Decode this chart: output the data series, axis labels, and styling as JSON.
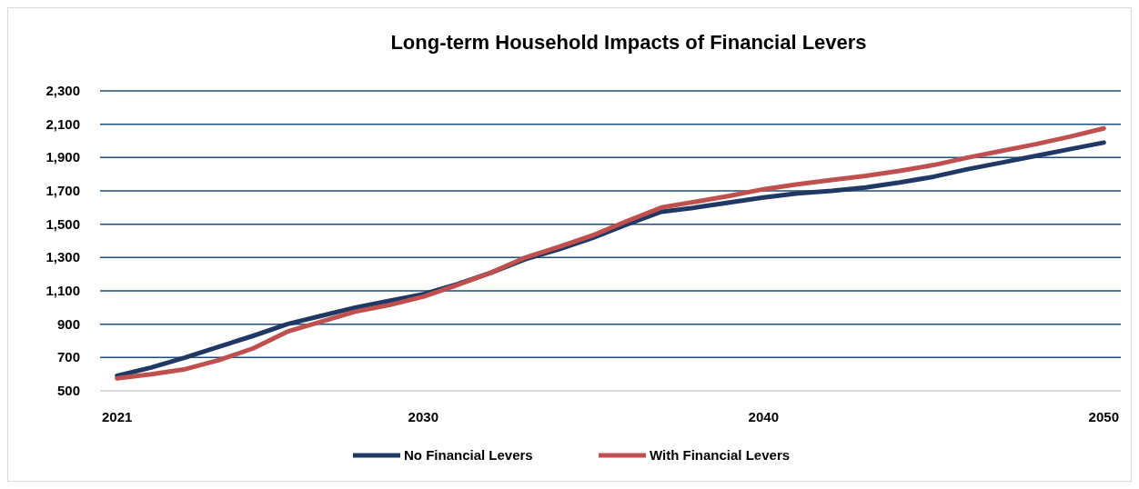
{
  "chart_data": {
    "type": "line",
    "title": "Long-term Household Impacts of Financial Levers",
    "x": [
      2021,
      2022,
      2023,
      2024,
      2025,
      2026,
      2027,
      2028,
      2029,
      2030,
      2031,
      2032,
      2033,
      2034,
      2035,
      2036,
      2037,
      2038,
      2039,
      2040,
      2041,
      2042,
      2043,
      2044,
      2045,
      2046,
      2047,
      2048,
      2049,
      2050
    ],
    "series": [
      {
        "name": "No Financial Levers",
        "color": "#1f3864",
        "values": [
          590,
          640,
          700,
          765,
          830,
          900,
          950,
          1000,
          1040,
          1080,
          1140,
          1210,
          1290,
          1350,
          1420,
          1500,
          1575,
          1600,
          1630,
          1660,
          1685,
          1700,
          1720,
          1750,
          1785,
          1830,
          1870,
          1910,
          1950,
          1990
        ]
      },
      {
        "name": "With Financial Levers",
        "color": "#c0504d",
        "values": [
          575,
          600,
          630,
          685,
          755,
          855,
          915,
          975,
          1015,
          1065,
          1135,
          1210,
          1300,
          1365,
          1435,
          1520,
          1600,
          1635,
          1670,
          1710,
          1740,
          1765,
          1790,
          1820,
          1855,
          1900,
          1940,
          1980,
          2025,
          2075
        ]
      }
    ],
    "xlim": [
      2020.5,
      2050.5
    ],
    "xticks": [
      2021,
      2030,
      2040,
      2050
    ],
    "ylim": [
      500,
      2300
    ],
    "yticks": [
      {
        "value": 500,
        "label": "500"
      },
      {
        "value": 700,
        "label": "700"
      },
      {
        "value": 900,
        "label": "900"
      },
      {
        "value": 1100,
        "label": "1,100"
      },
      {
        "value": 1300,
        "label": "1,300"
      },
      {
        "value": 1500,
        "label": "1,500"
      },
      {
        "value": 1700,
        "label": "1,700"
      },
      {
        "value": 1900,
        "label": "1,900"
      },
      {
        "value": 2100,
        "label": "2,100"
      },
      {
        "value": 2300,
        "label": "2,300"
      }
    ],
    "grid": "y",
    "legend": "bottom",
    "marker": "none",
    "line_style": "solid"
  }
}
